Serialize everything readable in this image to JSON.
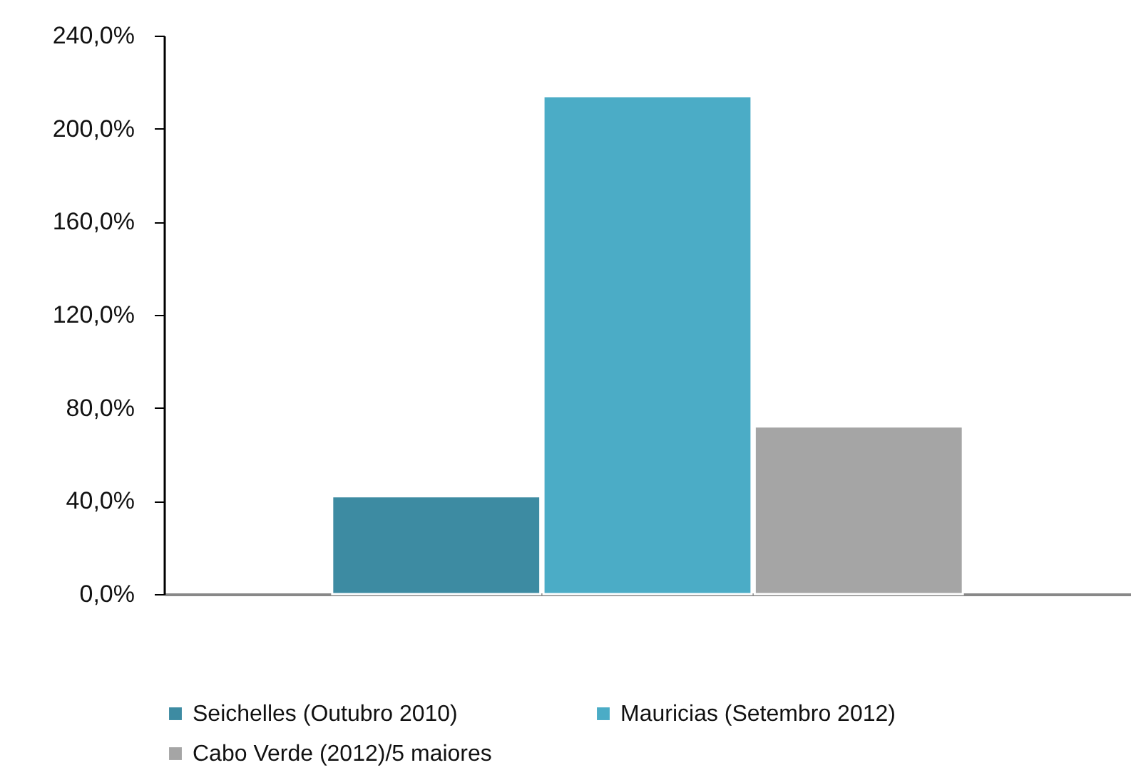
{
  "chart_data": {
    "type": "bar",
    "categories": [
      null
    ],
    "series": [
      {
        "name": "Seichelles (Outubro 2010)",
        "color": "#3d8ba2",
        "values": [
          42
        ]
      },
      {
        "name": "Mauricias (Setembro 2012)",
        "color": "#4bacc6",
        "values": [
          214
        ]
      },
      {
        "name": "Cabo Verde (2012)/5 maiores",
        "color": "#a5a5a5",
        "values": [
          72
        ]
      }
    ],
    "ylim": [
      0,
      240
    ],
    "yticks": [
      {
        "value": 0,
        "label": "0,0%"
      },
      {
        "value": 40,
        "label": "40,0%"
      },
      {
        "value": 80,
        "label": "80,0%"
      },
      {
        "value": 120,
        "label": "120,0%"
      },
      {
        "value": 160,
        "label": "160,0%"
      },
      {
        "value": 200,
        "label": "200,0%"
      },
      {
        "value": 240,
        "label": "240,0%"
      }
    ],
    "grid": false,
    "legend": "bottom"
  }
}
